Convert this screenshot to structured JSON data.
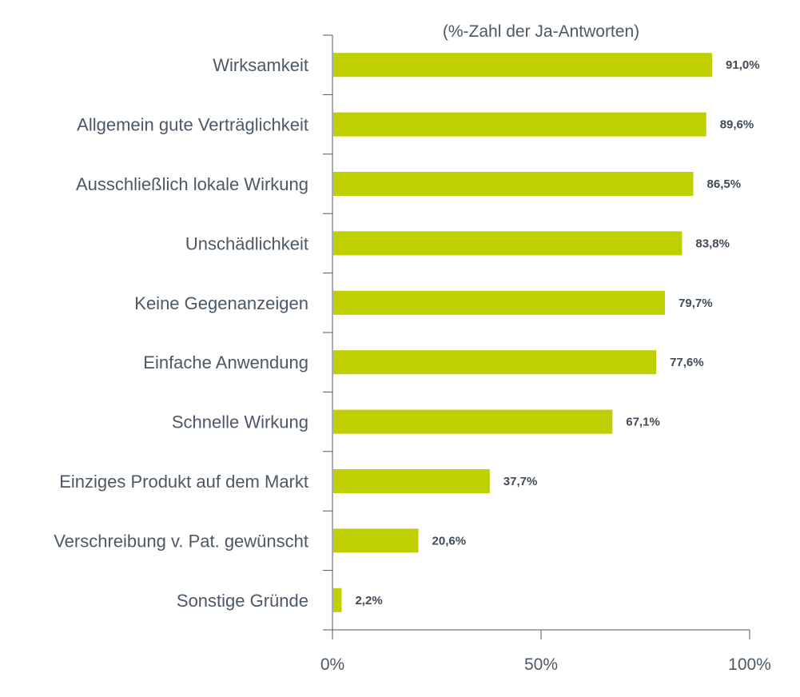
{
  "chart_data": {
    "type": "bar",
    "orientation": "horizontal",
    "title": "(%-Zahl der Ja-Antworten)",
    "categories": [
      "Wirksamkeit",
      "Allgemein gute Verträglichkeit",
      "Ausschließlich lokale Wirkung",
      "Unschädlichkeit",
      "Keine Gegenanzeigen",
      "Einfache Anwendung",
      "Schnelle Wirkung",
      "Einziges Produkt auf dem Markt",
      "Verschreibung v. Pat. gewünscht",
      "Sonstige Gründe"
    ],
    "values": [
      91.0,
      89.6,
      86.5,
      83.8,
      79.7,
      77.6,
      67.1,
      37.7,
      20.6,
      2.2
    ],
    "value_labels": [
      "91,0%",
      "89,6%",
      "86,5%",
      "83,8%",
      "79,7%",
      "77,6%",
      "67,1%",
      "37,7%",
      "20,6%",
      "2,2%"
    ],
    "xlim": [
      0,
      100
    ],
    "xticks": [
      0,
      50,
      100
    ],
    "xtick_labels": [
      "0%",
      "50%",
      "100%"
    ],
    "grid": false,
    "legend": "none",
    "bar_color": "#c0cf00",
    "text_color": "#4b5866"
  }
}
